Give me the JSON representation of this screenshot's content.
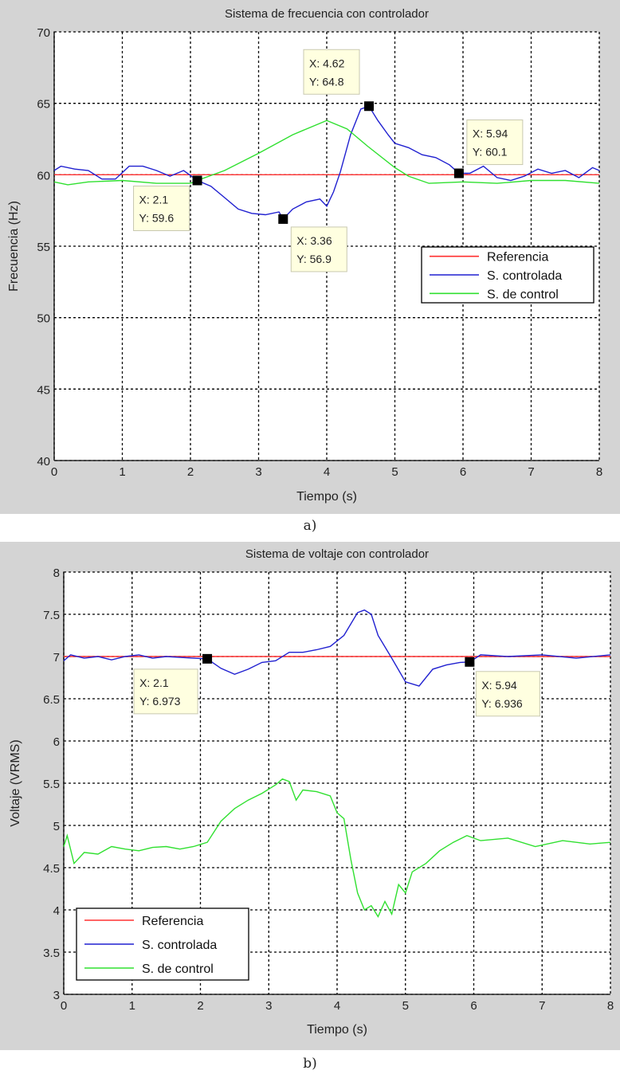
{
  "colors": {
    "panel_bg": "#d4d4d4",
    "referencia": "#ff3030",
    "controlada": "#2020d0",
    "control": "#30e030",
    "tip_bg": "#ffffe0"
  },
  "chart_data": [
    {
      "type": "line",
      "caption": "a)",
      "title": "Sistema de frecuencia con controlador",
      "xlabel": "Tiempo (s)",
      "ylabel": "Frecuencia (Hz)",
      "xlim": [
        0,
        8
      ],
      "ylim": [
        40,
        70
      ],
      "xticks": [
        "0",
        "1",
        "2",
        "3",
        "4",
        "5",
        "6",
        "7",
        "8"
      ],
      "yticks": [
        "40",
        "45",
        "50",
        "55",
        "60",
        "65",
        "70"
      ],
      "grid": true,
      "legend_position": "center-right",
      "series": [
        {
          "name": "Referencia",
          "color_key": "referencia",
          "x": [
            0,
            8
          ],
          "y": [
            60,
            60
          ]
        },
        {
          "name": "S. controlada",
          "color_key": "controlada",
          "x": [
            0,
            0.1,
            0.3,
            0.5,
            0.7,
            0.9,
            1.1,
            1.3,
            1.5,
            1.7,
            1.9,
            2.1,
            2.3,
            2.5,
            2.7,
            2.9,
            3.1,
            3.3,
            3.36,
            3.5,
            3.7,
            3.9,
            4.0,
            4.1,
            4.2,
            4.35,
            4.5,
            4.62,
            4.75,
            4.9,
            5.0,
            5.2,
            5.4,
            5.6,
            5.8,
            5.94,
            6.1,
            6.3,
            6.5,
            6.7,
            6.9,
            7.1,
            7.3,
            7.5,
            7.7,
            7.9,
            8
          ],
          "y": [
            60.3,
            60.6,
            60.4,
            60.3,
            59.7,
            59.7,
            60.6,
            60.6,
            60.3,
            59.9,
            60.3,
            59.6,
            59.2,
            58.4,
            57.6,
            57.3,
            57.2,
            57.4,
            56.9,
            57.6,
            58.1,
            58.3,
            57.8,
            58.8,
            60.2,
            62.8,
            64.6,
            64.8,
            63.8,
            62.8,
            62.2,
            61.9,
            61.4,
            61.2,
            60.7,
            60.1,
            60.1,
            60.6,
            59.8,
            59.6,
            59.9,
            60.4,
            60.1,
            60.3,
            59.8,
            60.5,
            60.3
          ]
        },
        {
          "name": "S. de control",
          "color_key": "control",
          "x": [
            0,
            0.2,
            0.5,
            1,
            1.5,
            2,
            2.1,
            2.5,
            3,
            3.5,
            4,
            4.3,
            4.6,
            5,
            5.2,
            5.5,
            6,
            6.5,
            7,
            7.5,
            8
          ],
          "y": [
            59.5,
            59.3,
            59.5,
            59.6,
            59.4,
            59.4,
            59.6,
            60.3,
            61.5,
            62.8,
            63.8,
            63.2,
            62,
            60.5,
            59.9,
            59.4,
            59.5,
            59.4,
            59.6,
            59.6,
            59.4
          ]
        }
      ],
      "datatips": [
        {
          "x": 2.1,
          "y": 59.6,
          "xtext": "X: 2.1",
          "ytext": "Y: 59.6"
        },
        {
          "x": 3.36,
          "y": 56.9,
          "xtext": "X: 3.36",
          "ytext": "Y: 56.9"
        },
        {
          "x": 4.62,
          "y": 64.8,
          "xtext": "X: 4.62",
          "ytext": "Y: 64.8"
        },
        {
          "x": 5.94,
          "y": 60.1,
          "xtext": "X: 5.94",
          "ytext": "Y: 60.1"
        }
      ]
    },
    {
      "type": "line",
      "caption": "b)",
      "title": "Sistema de voltaje con controlador",
      "xlabel": "Tiempo (s)",
      "ylabel": "Voltaje (VRMS)",
      "xlim": [
        0,
        8
      ],
      "ylim": [
        3,
        8
      ],
      "xticks": [
        "0",
        "1",
        "2",
        "3",
        "4",
        "5",
        "6",
        "7",
        "8"
      ],
      "yticks": [
        "3",
        "3.5",
        "4",
        "4.5",
        "5",
        "5.5",
        "6",
        "6.5",
        "7",
        "7.5",
        "8"
      ],
      "grid": true,
      "legend_position": "bottom-left",
      "series": [
        {
          "name": "Referencia",
          "color_key": "referencia",
          "x": [
            0,
            8
          ],
          "y": [
            7,
            7
          ]
        },
        {
          "name": "S. controlada",
          "color_key": "controlada",
          "x": [
            0,
            0.1,
            0.3,
            0.5,
            0.7,
            0.9,
            1.1,
            1.3,
            1.5,
            1.7,
            1.9,
            2.1,
            2.3,
            2.5,
            2.7,
            2.9,
            3.1,
            3.3,
            3.5,
            3.7,
            3.9,
            4.1,
            4.3,
            4.4,
            4.5,
            4.6,
            4.8,
            5.0,
            5.2,
            5.4,
            5.6,
            5.8,
            5.94,
            6.1,
            6.5,
            7,
            7.5,
            8
          ],
          "y": [
            6.95,
            7.02,
            6.98,
            7,
            6.96,
            7,
            7.02,
            6.98,
            7,
            6.99,
            6.98,
            6.973,
            6.86,
            6.79,
            6.85,
            6.93,
            6.95,
            7.05,
            7.05,
            7.08,
            7.12,
            7.25,
            7.52,
            7.55,
            7.5,
            7.25,
            6.98,
            6.7,
            6.65,
            6.85,
            6.9,
            6.93,
            6.936,
            7.02,
            7,
            7.02,
            6.98,
            7.02
          ]
        },
        {
          "name": "S. de control",
          "color_key": "control",
          "x": [
            0,
            0.05,
            0.15,
            0.3,
            0.5,
            0.7,
            0.9,
            1.1,
            1.3,
            1.5,
            1.7,
            1.9,
            2.1,
            2.3,
            2.5,
            2.7,
            2.9,
            3.1,
            3.2,
            3.3,
            3.4,
            3.5,
            3.7,
            3.9,
            4.0,
            4.1,
            4.2,
            4.3,
            4.4,
            4.5,
            4.6,
            4.7,
            4.8,
            4.9,
            5.0,
            5.1,
            5.3,
            5.5,
            5.7,
            5.9,
            6.1,
            6.5,
            6.9,
            7.3,
            7.7,
            8
          ],
          "y": [
            4.75,
            4.88,
            4.55,
            4.68,
            4.66,
            4.75,
            4.72,
            4.7,
            4.74,
            4.75,
            4.72,
            4.75,
            4.8,
            5.05,
            5.2,
            5.3,
            5.38,
            5.48,
            5.55,
            5.52,
            5.3,
            5.42,
            5.4,
            5.35,
            5.15,
            5.08,
            4.6,
            4.2,
            4.0,
            4.05,
            3.92,
            4.1,
            3.95,
            4.3,
            4.2,
            4.45,
            4.55,
            4.7,
            4.8,
            4.88,
            4.82,
            4.85,
            4.75,
            4.82,
            4.78,
            4.8
          ]
        }
      ],
      "datatips": [
        {
          "x": 2.1,
          "y": 6.973,
          "xtext": "X: 2.1",
          "ytext": "Y: 6.973"
        },
        {
          "x": 5.94,
          "y": 6.936,
          "xtext": "X: 5.94",
          "ytext": "Y: 6.936"
        }
      ]
    }
  ]
}
